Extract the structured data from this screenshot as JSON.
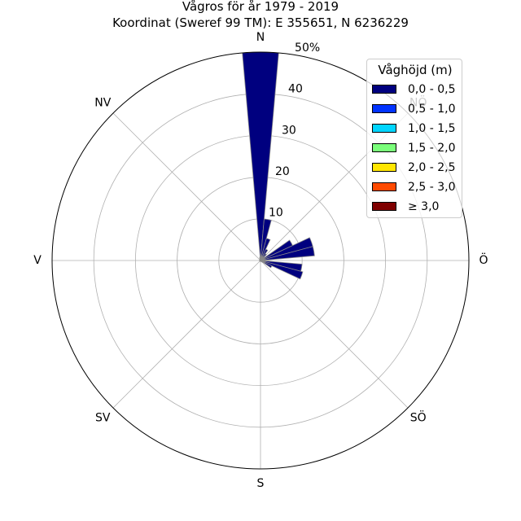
{
  "title_line1": "Vågros för år 1979 - 2019",
  "title_line2": "Koordinat (Sweref 99 TM): E 355651, N 6236229",
  "chart_data": {
    "type": "polar-bar",
    "title": "Vågros för år 1979 - 2019",
    "subtitle": "Koordinat (Sweref 99 TM): E 355651, N 6236229",
    "directions": [
      "N",
      "NV",
      "V",
      "SV",
      "S",
      "SÖ",
      "Ö",
      "NÖ"
    ],
    "direction_angles_deg": [
      0,
      315,
      270,
      225,
      180,
      135,
      90,
      45
    ],
    "r_ticks": [
      "10",
      "20",
      "30",
      "40",
      "50%"
    ],
    "r_tick_values": [
      10,
      20,
      30,
      40,
      50
    ],
    "rlim": [
      0,
      50
    ],
    "sector_width_deg": 10,
    "sector_centers_deg": [
      0,
      10,
      20,
      30,
      40,
      50,
      60,
      70,
      80,
      90,
      100,
      110,
      120,
      130,
      140,
      150,
      160,
      170,
      180,
      190,
      200,
      210,
      220,
      230,
      240,
      250,
      260,
      270,
      280,
      290,
      300,
      310,
      320,
      330,
      340,
      350
    ],
    "series": [
      {
        "name": "0,0 - 0,5",
        "color": "#00007f",
        "values": [
          50.0,
          10.0,
          5.5,
          3.0,
          2.0,
          1.2,
          8.5,
          13.0,
          13.0,
          1.0,
          10.0,
          10.5,
          3.0,
          0.6,
          0.3,
          0.2,
          0.2,
          0.2,
          0.2,
          0.2,
          0.2,
          0.2,
          0.2,
          0.2,
          0.2,
          0.2,
          0.2,
          0.2,
          0.2,
          0.2,
          0.2,
          0.2,
          0.2,
          0.3,
          0.5,
          0.8
        ]
      },
      {
        "name": "0,5 - 1,0",
        "color": "#0033ff",
        "values": []
      },
      {
        "name": "1,0 - 1,5",
        "color": "#00d5ff",
        "values": []
      },
      {
        "name": "1,5 - 2,0",
        "color": "#7aff7a",
        "values": []
      },
      {
        "name": "2,0 - 2,5",
        "color": "#ffe600",
        "values": []
      },
      {
        "name": "2,5 - 3,0",
        "color": "#ff4a00",
        "values": []
      },
      {
        "name": "≥ 3,0",
        "color": "#7f0000",
        "values": []
      }
    ],
    "legend_title": "Våghöjd (m)",
    "legend_position": "top-right",
    "grid": true
  }
}
